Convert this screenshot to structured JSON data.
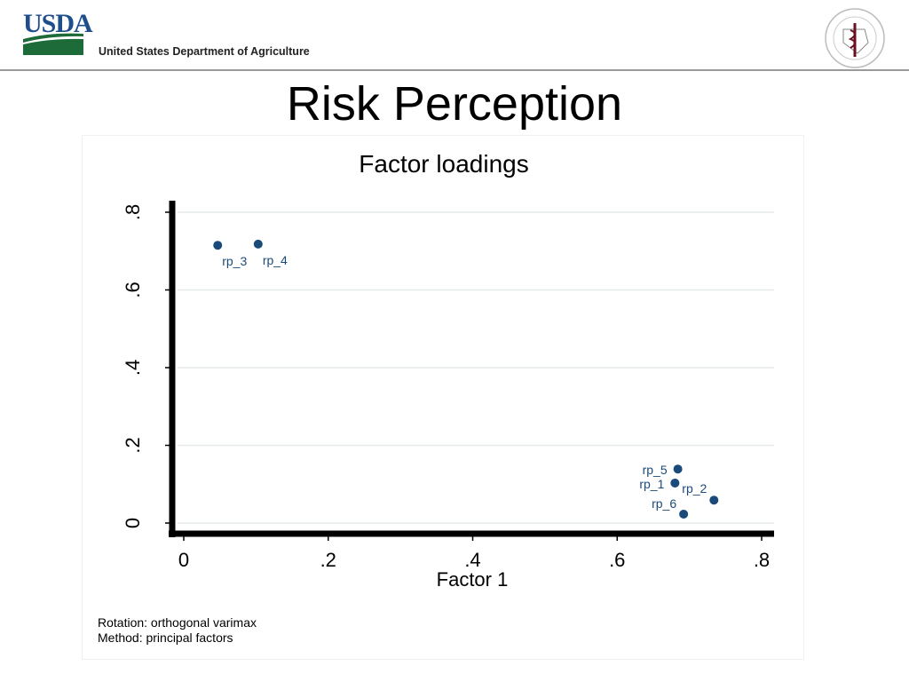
{
  "header": {
    "logo_text": "USDA",
    "agency": "United States Department of Agriculture",
    "partner_logo": "Texas A&M University College of Veterinary Medicine & Biomedical Sciences seal"
  },
  "slide_title": "Risk Perception",
  "chart_data": {
    "type": "scatter",
    "title": "Factor loadings",
    "xlabel": "Factor 1",
    "ylabel": "",
    "xlim": [
      0,
      0.8
    ],
    "ylim": [
      0,
      0.8
    ],
    "xticks": [
      "0",
      ".2",
      ".4",
      ".6",
      ".8"
    ],
    "yticks": [
      "0",
      ".2",
      ".4",
      ".6",
      ".8"
    ],
    "grid": true,
    "marker_color": "#1a4a7a",
    "points": [
      {
        "label": "rp_1",
        "x": 0.68,
        "y": 0.103
      },
      {
        "label": "rp_2",
        "x": 0.734,
        "y": 0.059
      },
      {
        "label": "rp_3",
        "x": 0.047,
        "y": 0.715
      },
      {
        "label": "rp_4",
        "x": 0.103,
        "y": 0.718
      },
      {
        "label": "rp_5",
        "x": 0.684,
        "y": 0.139
      },
      {
        "label": "rp_6",
        "x": 0.692,
        "y": 0.023
      }
    ],
    "notes": [
      "Rotation: orthogonal varimax",
      "Method: principal factors"
    ]
  }
}
